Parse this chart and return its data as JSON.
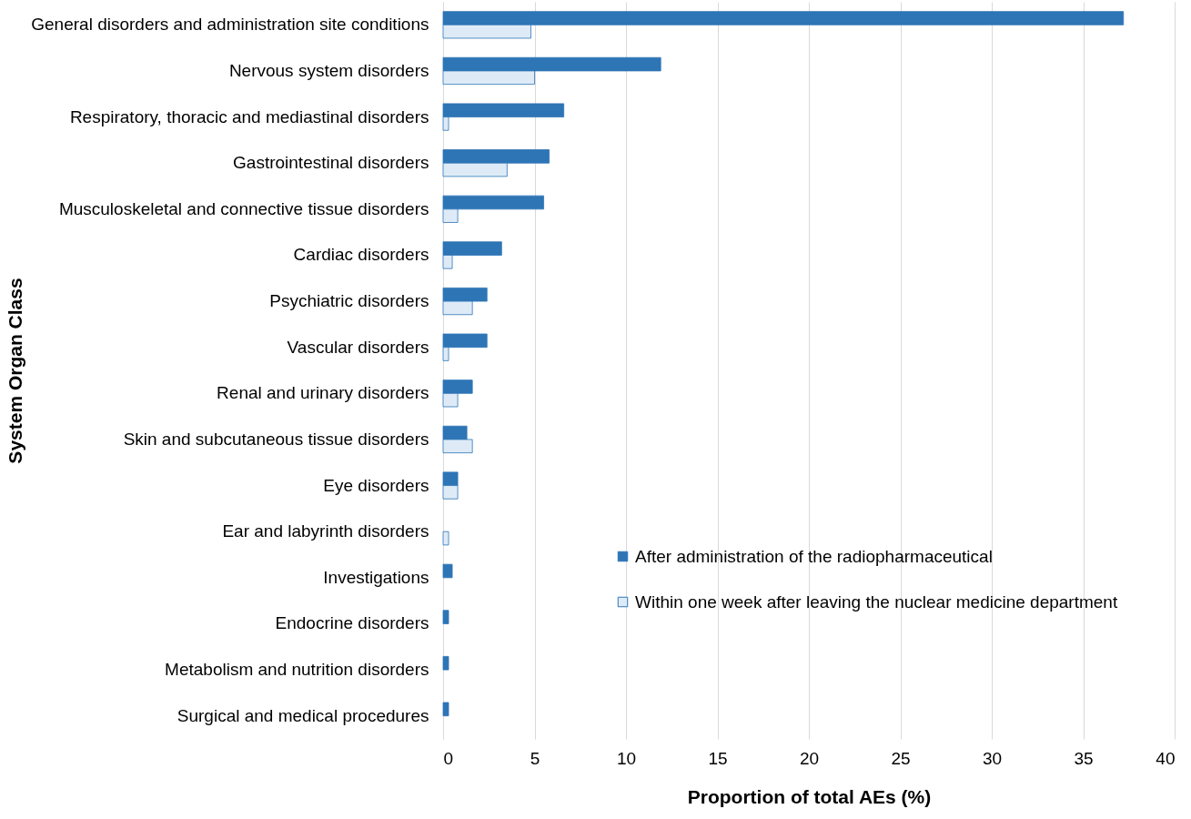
{
  "chart_data": {
    "type": "bar",
    "orientation": "horizontal",
    "xlabel": "Proportion of total AEs (%)",
    "ylabel": "System Organ Class",
    "categories": [
      "General disorders and administration site conditions",
      "Nervous system disorders",
      "Respiratory, thoracic and mediastinal disorders",
      "Gastrointestinal disorders",
      "Musculoskeletal and connective tissue disorders",
      "Cardiac disorders",
      "Psychiatric disorders",
      "Vascular disorders",
      "Renal and urinary disorders",
      "Skin and subcutaneous tissue disorders",
      "Eye disorders",
      "Ear and labyrinth disorders",
      "Investigations",
      "Endocrine disorders",
      "Metabolism and nutrition disorders",
      "Surgical and medical procedures"
    ],
    "series": [
      {
        "name": "After administration of the radiopharmaceutical",
        "color": "#2e75b6",
        "values": [
          37.2,
          11.9,
          6.6,
          5.8,
          5.5,
          3.2,
          2.4,
          2.4,
          1.6,
          1.3,
          0.8,
          null,
          0.5,
          0.3,
          0.3,
          0.3
        ]
      },
      {
        "name": "Within one week after leaving the nuclear medicine department",
        "color": "#deebf7",
        "values": [
          4.8,
          5.0,
          0.3,
          3.5,
          0.8,
          0.5,
          1.6,
          0.3,
          0.8,
          1.6,
          0.8,
          0.3,
          null,
          null,
          null,
          null
        ]
      }
    ],
    "xlim": [
      0,
      40
    ],
    "xticks": [
      0,
      5,
      10,
      15,
      20,
      25,
      30,
      35,
      40
    ],
    "grid": "x",
    "legend": "bottom right"
  }
}
